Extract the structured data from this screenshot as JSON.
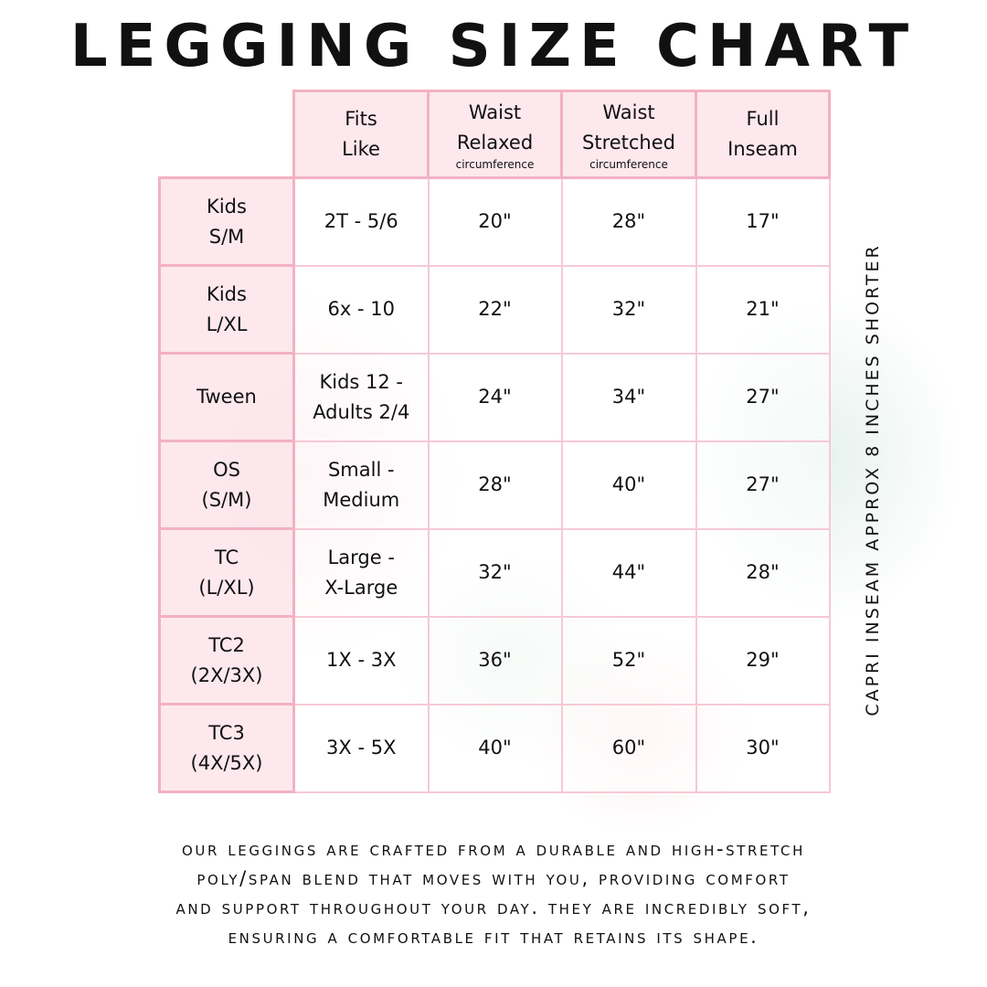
{
  "title": "LEGGING SIZE CHART",
  "columns": [
    {
      "lines": [
        "Fits",
        "Like"
      ],
      "sub": ""
    },
    {
      "lines": [
        "Waist",
        "Relaxed"
      ],
      "sub": "circumference"
    },
    {
      "lines": [
        "Waist",
        "Stretched"
      ],
      "sub": "circumference"
    },
    {
      "lines": [
        "Full",
        "Inseam"
      ],
      "sub": ""
    }
  ],
  "rows": [
    {
      "size": [
        "Kids",
        "S/M"
      ],
      "fits": [
        "2T - 5/6"
      ],
      "relaxed": "20\"",
      "stretched": "28\"",
      "inseam": "17\""
    },
    {
      "size": [
        "Kids",
        "L/XL"
      ],
      "fits": [
        "6x - 10"
      ],
      "relaxed": "22\"",
      "stretched": "32\"",
      "inseam": "21\""
    },
    {
      "size": [
        "Tween"
      ],
      "fits": [
        "Kids 12 -",
        "Adults 2/4"
      ],
      "relaxed": "24\"",
      "stretched": "34\"",
      "inseam": "27\""
    },
    {
      "size": [
        "OS",
        "(S/M)"
      ],
      "fits": [
        "Small -",
        "Medium"
      ],
      "relaxed": "28\"",
      "stretched": "40\"",
      "inseam": "27\""
    },
    {
      "size": [
        "TC",
        "(L/XL)"
      ],
      "fits": [
        "Large -",
        "X-Large"
      ],
      "relaxed": "32\"",
      "stretched": "44\"",
      "inseam": "28\""
    },
    {
      "size": [
        "TC2",
        "(2X/3X)"
      ],
      "fits": [
        "1X - 3X"
      ],
      "relaxed": "36\"",
      "stretched": "52\"",
      "inseam": "29\""
    },
    {
      "size": [
        "TC3",
        "(4X/5X)"
      ],
      "fits": [
        "3X - 5X"
      ],
      "relaxed": "40\"",
      "stretched": "60\"",
      "inseam": "30\""
    }
  ],
  "side_note": "CAPRI INSEAM APPROX 8 INCHES SHORTER",
  "footer": [
    "our leggings are crafted from a durable and high-stretch",
    "poly/span blend that moves with you, providing comfort",
    "and support throughout your day. they are incredibly soft,",
    "ensuring a comfortable fit that retains its shape."
  ],
  "colors": {
    "border": "#f3b1c4",
    "header_fill": "#fce6ec"
  }
}
